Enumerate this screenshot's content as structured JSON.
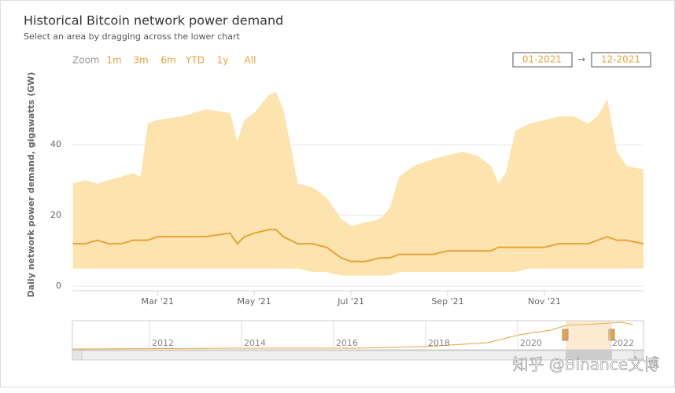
{
  "header": {
    "title": "Historical Bitcoin network power demand",
    "subtitle": "Select an area by dragging across the lower chart"
  },
  "controls": {
    "zoom_label": "Zoom",
    "buttons": [
      "1m",
      "3m",
      "6m",
      "YTD",
      "1y",
      "All"
    ],
    "from": "01-2021",
    "arrow": "→",
    "to": "12-2021"
  },
  "chart_data": {
    "type": "line",
    "y_label": "Daily network power demand, gigawatts (GW)",
    "x": [
      1.25,
      1.5,
      1.75,
      2.0,
      2.25,
      2.5,
      2.65,
      2.8,
      3.0,
      3.5,
      4.0,
      4.5,
      4.65,
      4.8,
      5.0,
      5.3,
      5.45,
      5.6,
      5.75,
      5.9,
      6.2,
      6.5,
      6.8,
      7.0,
      7.3,
      7.6,
      7.8,
      8.0,
      8.3,
      8.7,
      9.0,
      9.3,
      9.6,
      9.9,
      10.05,
      10.2,
      10.4,
      10.7,
      11.0,
      11.3,
      11.6,
      11.9,
      12.1,
      12.3,
      12.5,
      12.7,
      13.05
    ],
    "range": {
      "color": "#fde3ad",
      "high": [
        29,
        30,
        29,
        30,
        31,
        32,
        31,
        46,
        47,
        48,
        50,
        49,
        41,
        47,
        49,
        54,
        55,
        50,
        40,
        29,
        28,
        25,
        19,
        17,
        18,
        19,
        22,
        31,
        34,
        36,
        37,
        38,
        37,
        34,
        29,
        32,
        44,
        46,
        47,
        48,
        48,
        46,
        48,
        53,
        38,
        34,
        33
      ],
      "low": [
        5,
        5,
        5,
        5,
        5,
        5,
        5,
        5,
        5,
        5,
        5,
        5,
        5,
        5,
        5,
        5,
        5,
        5,
        5,
        5,
        4,
        4,
        3,
        3,
        3,
        3,
        3,
        4,
        4,
        4,
        4,
        4,
        4,
        4,
        4,
        4,
        4,
        5,
        5,
        5,
        5,
        5,
        5,
        5,
        5,
        5,
        5
      ]
    },
    "series": [
      {
        "color": "#e8a33a",
        "values": [
          12,
          12,
          13,
          12,
          12,
          13,
          13,
          13,
          14,
          14,
          14,
          15,
          12,
          14,
          15,
          16,
          16,
          14,
          13,
          12,
          12,
          11,
          8,
          7,
          7,
          8,
          8,
          9,
          9,
          9,
          10,
          10,
          10,
          10,
          11,
          11,
          11,
          11,
          11,
          12,
          12,
          12,
          13,
          14,
          13,
          13,
          12
        ]
      }
    ],
    "xlim": [
      1.24,
      13.05
    ],
    "xticks": [
      {
        "value": 3,
        "label": "Mar '21"
      },
      {
        "value": 5,
        "label": "May '21"
      },
      {
        "value": 7,
        "label": "Jul '21"
      },
      {
        "value": 9,
        "label": "Sep '21"
      },
      {
        "value": 11,
        "label": "Nov '21"
      }
    ],
    "ylim": [
      -1.3,
      58.7
    ],
    "yticks": [
      0,
      20,
      40
    ],
    "grid": true
  },
  "navigator": {
    "labels": [
      "2012",
      "2014",
      "2016",
      "2018",
      "2020",
      "2022"
    ]
  },
  "watermark": "知乎 @Binance文博"
}
